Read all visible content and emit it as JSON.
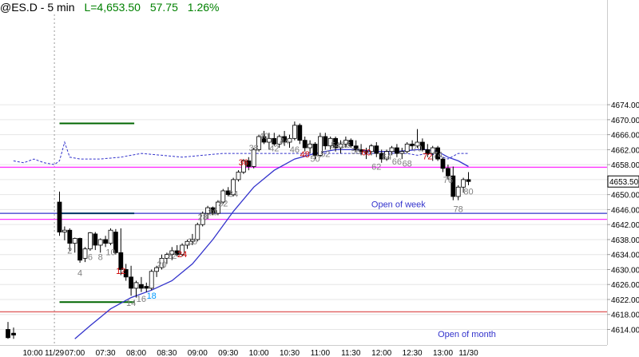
{
  "header": {
    "symbol": "@ES.D - 5 min",
    "last": "L=4,653.50",
    "change": "57.75",
    "change_pct": "1.26%"
  },
  "chart_data": {
    "type": "candlestick",
    "y_axis": {
      "ticks": [
        "4614.00",
        "4618.00",
        "4622.00",
        "4626.00",
        "4630.00",
        "4634.00",
        "4638.00",
        "4642.00",
        "4646.00",
        "4650.00",
        "4654.00",
        "4658.00",
        "4662.00",
        "4666.00",
        "4670.00",
        "4674.00"
      ],
      "range": [
        4611.5,
        4676
      ],
      "last_price_label": "4653.50",
      "last_price": 4653.5
    },
    "x_axis": {
      "ticks": [
        {
          "label": "10:00",
          "bar": -9
        },
        {
          "label": "11/29",
          "bar": -1
        },
        {
          "label": "07:00",
          "bar": 3
        },
        {
          "label": "07:30",
          "bar": 9
        },
        {
          "label": "08:00",
          "bar": 15
        },
        {
          "label": "08:30",
          "bar": 21
        },
        {
          "label": "09:00",
          "bar": 27
        },
        {
          "label": "09:30",
          "bar": 33
        },
        {
          "label": "10:00",
          "bar": 39
        },
        {
          "label": "10:30",
          "bar": 45
        },
        {
          "label": "11:00",
          "bar": 51
        },
        {
          "label": "11:30",
          "bar": 57
        },
        {
          "label": "12:00",
          "bar": 63
        },
        {
          "label": "12:30",
          "bar": 69
        },
        {
          "label": "13:00",
          "bar": 75
        },
        {
          "label": "11/30",
          "bar": 80
        }
      ]
    },
    "prior_bars": [
      [
        4614.0,
        4616.0,
        4611.5,
        4611.8
      ],
      [
        4613.0,
        4614.5,
        4611.5,
        4612.5
      ]
    ],
    "candles": [
      [
        4648.0,
        4650.8,
        4639.0,
        4640.0
      ],
      [
        4640.0,
        4641.5,
        4637.8,
        4640.5
      ],
      [
        4640.5,
        4641.0,
        4635.0,
        4637.0
      ],
      [
        4637.0,
        4638.5,
        4634.5,
        4638.3
      ],
      [
        4638.3,
        4638.5,
        4631.8,
        4632.5
      ],
      [
        4633.0,
        4636.0,
        4632.0,
        4635.5
      ],
      [
        4635.5,
        4640.0,
        4635.0,
        4639.8
      ],
      [
        4639.5,
        4640.0,
        4635.2,
        4636.5
      ],
      [
        4636.5,
        4638.3,
        4634.5,
        4638.0
      ],
      [
        4638.0,
        4639.0,
        4636.0,
        4637.0
      ],
      [
        4637.0,
        4641.0,
        4636.5,
        4640.5
      ],
      [
        4640.0,
        4640.8,
        4634.0,
        4634.5
      ],
      [
        4634.5,
        4641.0,
        4628.5,
        4630.0
      ],
      [
        4630.0,
        4631.5,
        4627.0,
        4628.0
      ],
      [
        4628.0,
        4631.0,
        4623.0,
        4625.0
      ],
      [
        4625.0,
        4627.0,
        4622.5,
        4626.5
      ],
      [
        4626.0,
        4628.0,
        4624.0,
        4625.0
      ],
      [
        4625.5,
        4626.5,
        4624.0,
        4625.0
      ],
      [
        4625.0,
        4630.0,
        4624.5,
        4629.5
      ],
      [
        4629.5,
        4631.0,
        4628.0,
        4630.5
      ],
      [
        4630.5,
        4634.0,
        4630.0,
        4633.0
      ],
      [
        4633.0,
        4634.5,
        4631.5,
        4634.0
      ],
      [
        4634.0,
        4636.0,
        4632.5,
        4635.0
      ],
      [
        4635.0,
        4636.5,
        4633.5,
        4634.0
      ],
      [
        4634.0,
        4637.0,
        4633.5,
        4636.5
      ],
      [
        4636.5,
        4638.0,
        4635.5,
        4637.5
      ],
      [
        4637.5,
        4639.5,
        4636.5,
        4638.0
      ],
      [
        4638.0,
        4642.5,
        4637.5,
        4642.0
      ],
      [
        4642.0,
        4645.5,
        4641.5,
        4645.0
      ],
      [
        4645.0,
        4647.0,
        4643.5,
        4646.5
      ],
      [
        4646.5,
        4646.8,
        4644.5,
        4645.0
      ],
      [
        4645.0,
        4648.5,
        4644.5,
        4648.0
      ],
      [
        4648.0,
        4651.5,
        4647.5,
        4651.0
      ],
      [
        4651.0,
        4652.0,
        4649.5,
        4650.0
      ],
      [
        4650.0,
        4654.5,
        4649.5,
        4654.0
      ],
      [
        4654.0,
        4656.5,
        4653.5,
        4656.0
      ],
      [
        4656.0,
        4659.5,
        4655.5,
        4659.0
      ],
      [
        4659.0,
        4660.0,
        4656.5,
        4657.5
      ],
      [
        4657.5,
        4662.5,
        4657.0,
        4662.0
      ],
      [
        4662.0,
        4666.0,
        4661.5,
        4665.5
      ],
      [
        4665.5,
        4667.0,
        4663.5,
        4664.0
      ],
      [
        4664.0,
        4666.5,
        4662.0,
        4665.0
      ],
      [
        4665.0,
        4666.5,
        4663.0,
        4663.5
      ],
      [
        4663.5,
        4666.0,
        4662.5,
        4665.5
      ],
      [
        4665.5,
        4667.0,
        4663.0,
        4664.0
      ],
      [
        4664.0,
        4666.0,
        4662.5,
        4665.0
      ],
      [
        4665.0,
        4669.5,
        4664.5,
        4668.5
      ],
      [
        4668.5,
        4669.0,
        4663.5,
        4664.5
      ],
      [
        4664.5,
        4665.5,
        4661.5,
        4662.5
      ],
      [
        4662.5,
        4664.5,
        4661.0,
        4663.5
      ],
      [
        4663.5,
        4664.0,
        4659.5,
        4660.5
      ],
      [
        4660.5,
        4666.5,
        4660.0,
        4665.5
      ],
      [
        4665.5,
        4666.5,
        4662.0,
        4663.0
      ],
      [
        4663.0,
        4665.5,
        4662.0,
        4665.0
      ],
      [
        4665.0,
        4665.5,
        4661.5,
        4662.5
      ],
      [
        4662.5,
        4664.5,
        4661.0,
        4663.5
      ],
      [
        4663.5,
        4665.5,
        4662.5,
        4664.5
      ],
      [
        4664.5,
        4665.0,
        4662.5,
        4663.0
      ],
      [
        4663.0,
        4664.5,
        4661.5,
        4662.0
      ],
      [
        4662.0,
        4663.5,
        4660.5,
        4661.5
      ],
      [
        4661.5,
        4662.5,
        4659.5,
        4661.5
      ],
      [
        4661.5,
        4663.5,
        4660.5,
        4663.0
      ],
      [
        4663.0,
        4664.0,
        4660.0,
        4661.0
      ],
      [
        4661.0,
        4662.0,
        4658.5,
        4659.5
      ],
      [
        4659.5,
        4662.0,
        4659.0,
        4661.5
      ],
      [
        4661.5,
        4663.0,
        4660.5,
        4662.5
      ],
      [
        4662.5,
        4663.5,
        4660.0,
        4661.0
      ],
      [
        4661.0,
        4662.5,
        4659.5,
        4661.5
      ],
      [
        4661.5,
        4664.0,
        4661.0,
        4663.5
      ],
      [
        4663.5,
        4664.5,
        4662.0,
        4663.0
      ],
      [
        4663.0,
        4667.5,
        4662.5,
        4664.0
      ],
      [
        4664.0,
        4665.0,
        4661.5,
        4662.0
      ],
      [
        4662.0,
        4663.5,
        4660.0,
        4661.0
      ],
      [
        4661.0,
        4663.0,
        4659.0,
        4662.5
      ],
      [
        4662.5,
        4663.0,
        4659.0,
        4659.5
      ],
      [
        4659.5,
        4660.0,
        4656.0,
        4657.0
      ],
      [
        4657.0,
        4658.0,
        4654.0,
        4655.0
      ],
      [
        4655.0,
        4657.5,
        4648.5,
        4649.5
      ],
      [
        4649.5,
        4652.5,
        4648.5,
        4652.0
      ],
      [
        4652.0,
        4654.5,
        4650.5,
        4654.0
      ],
      [
        4654.0,
        4656.0,
        4652.5,
        4653.5
      ]
    ],
    "bar_labels": [
      {
        "text": "2",
        "bar": 2,
        "price": 4634.3,
        "color": "#808080"
      },
      {
        "text": "4",
        "bar": 4,
        "price": 4628.3,
        "color": "#808080"
      },
      {
        "text": "6",
        "bar": 6,
        "price": 4632.5,
        "color": "#808080"
      },
      {
        "text": "8",
        "bar": 8,
        "price": 4632.5,
        "color": "#808080"
      },
      {
        "text": "10",
        "bar": 10,
        "price": 4633.8,
        "color": "#808080"
      },
      {
        "text": "12",
        "bar": 12,
        "price": 4628.8,
        "color": "#cc0000"
      },
      {
        "text": "14",
        "bar": 14,
        "price": 4620.3,
        "color": "#808080"
      },
      {
        "text": "16",
        "bar": 16,
        "price": 4621.4,
        "color": "#808080"
      },
      {
        "text": "18",
        "bar": 18,
        "price": 4622.2,
        "color": "#0099ff"
      },
      {
        "text": "20",
        "bar": 20,
        "price": 4630.5,
        "color": "#808080"
      },
      {
        "text": "22",
        "bar": 22,
        "price": 4632.9,
        "color": "#808080"
      },
      {
        "text": "24",
        "bar": 24,
        "price": 4633.3,
        "color": "#cc0000"
      },
      {
        "text": "26",
        "bar": 26,
        "price": 4636.7,
        "color": "#808080"
      },
      {
        "text": "28",
        "bar": 28,
        "price": 4643.2,
        "color": "#808080"
      },
      {
        "text": "30",
        "bar": 30,
        "price": 4644.5,
        "color": "#808080"
      },
      {
        "text": "32",
        "bar": 32,
        "price": 4646.8,
        "color": "#808080"
      },
      {
        "text": "34",
        "bar": 34,
        "price": 4649.4,
        "color": "#808080"
      },
      {
        "text": "36",
        "bar": 36,
        "price": 4657.8,
        "color": "#cc0000"
      },
      {
        "text": "38",
        "bar": 38,
        "price": 4661.7,
        "color": "#808080"
      },
      {
        "text": "40",
        "bar": 40,
        "price": 4664.8,
        "color": "#808080"
      },
      {
        "text": "42",
        "bar": 42,
        "price": 4661.6,
        "color": "#808080"
      },
      {
        "text": "44",
        "bar": 44,
        "price": 4663.5,
        "color": "#808080"
      },
      {
        "text": "46",
        "bar": 46,
        "price": 4661.2,
        "color": "#808080"
      },
      {
        "text": "48",
        "bar": 48,
        "price": 4659.9,
        "color": "#cc0000"
      },
      {
        "text": "50",
        "bar": 50,
        "price": 4658.8,
        "color": "#808080"
      },
      {
        "text": "52",
        "bar": 52,
        "price": 4660.1,
        "color": "#808080"
      },
      {
        "text": "54",
        "bar": 54,
        "price": 4662.4,
        "color": "#808080"
      },
      {
        "text": "56",
        "bar": 56,
        "price": 4662.5,
        "color": "#808080"
      },
      {
        "text": "58",
        "bar": 58,
        "price": 4660.8,
        "color": "#808080"
      },
      {
        "text": "60",
        "bar": 60,
        "price": 4660.5,
        "color": "#cc0000"
      },
      {
        "text": "62",
        "bar": 62,
        "price": 4656.6,
        "color": "#808080"
      },
      {
        "text": "64",
        "bar": 64,
        "price": 4659.3,
        "color": "#808080"
      },
      {
        "text": "66",
        "bar": 66,
        "price": 4658.0,
        "color": "#808080"
      },
      {
        "text": "68",
        "bar": 68,
        "price": 4657.5,
        "color": "#808080"
      },
      {
        "text": "70",
        "bar": 70,
        "price": 4661.6,
        "color": "#808080"
      },
      {
        "text": "72",
        "bar": 72,
        "price": 4659.4,
        "color": "#cc0000"
      },
      {
        "text": "74",
        "bar": 74,
        "price": 4659.8,
        "color": "#808080"
      },
      {
        "text": "76",
        "bar": 76,
        "price": 4653.1,
        "color": "#808080"
      },
      {
        "text": "78",
        "bar": 78,
        "price": 4645.3,
        "color": "#808080"
      },
      {
        "text": "80",
        "bar": 80,
        "price": 4650.0,
        "color": "#808080"
      }
    ],
    "horizontal_lines": [
      {
        "price": 4657.3,
        "color": "#ff33ff"
      },
      {
        "price": 4643.4,
        "color": "#ff33ff"
      },
      {
        "price": 4645.0,
        "color": "#3333cc"
      },
      {
        "price": 4618.7,
        "color": "#e06060"
      }
    ],
    "range_markers": [
      {
        "price": 4669.0,
        "bar_from": 0,
        "bar_to": 14,
        "color": "#006600"
      },
      {
        "price": 4645.0,
        "bar_from": 0,
        "bar_to": 14,
        "color": "#003366"
      },
      {
        "price": 4621.3,
        "bar_from": 0,
        "bar_to": 14,
        "color": "#006600"
      }
    ],
    "annotations": [
      {
        "text": "Open of week",
        "price": 4646.6,
        "bar": 61,
        "color": "#3333cc"
      },
      {
        "text": "Open of month",
        "price": 4612.0,
        "bar": 74,
        "color": "#3333cc"
      }
    ],
    "ema_line": {
      "color": "#3333cc",
      "points": [
        [
          3,
          4611.5
        ],
        [
          6,
          4615
        ],
        [
          10,
          4619.5
        ],
        [
          14,
          4622.5
        ],
        [
          18,
          4624.5
        ],
        [
          22,
          4627
        ],
        [
          26,
          4631.5
        ],
        [
          30,
          4638
        ],
        [
          34,
          4645.5
        ],
        [
          38,
          4652
        ],
        [
          42,
          4656.5
        ],
        [
          46,
          4659.5
        ],
        [
          50,
          4661
        ],
        [
          54,
          4662
        ],
        [
          58,
          4662
        ],
        [
          62,
          4661.5
        ],
        [
          66,
          4661.5
        ],
        [
          70,
          4662
        ],
        [
          72,
          4662
        ],
        [
          74,
          4661.5
        ],
        [
          76,
          4660
        ],
        [
          78,
          4659
        ],
        [
          80,
          4657.5
        ]
      ]
    },
    "dashed_line": {
      "color": "#3333cc",
      "points": [
        [
          -9,
          4659
        ],
        [
          -7,
          4658.5
        ],
        [
          -5,
          4659.5
        ],
        [
          -3,
          4658.5
        ],
        [
          -1,
          4658
        ],
        [
          0,
          4659
        ],
        [
          1,
          4664
        ],
        [
          2,
          4660
        ],
        [
          4,
          4659.5
        ],
        [
          8,
          4659.5
        ],
        [
          12,
          4660
        ],
        [
          14,
          4660.5
        ],
        [
          16,
          4661
        ],
        [
          20,
          4660.5
        ],
        [
          24,
          4660
        ],
        [
          28,
          4660.5
        ],
        [
          32,
          4661
        ],
        [
          36,
          4661
        ],
        [
          40,
          4661
        ],
        [
          44,
          4661
        ],
        [
          48,
          4661
        ],
        [
          52,
          4661
        ],
        [
          56,
          4661
        ],
        [
          60,
          4661
        ],
        [
          64,
          4661
        ],
        [
          68,
          4661
        ],
        [
          70,
          4660.5
        ],
        [
          72,
          4661
        ],
        [
          74,
          4660.5
        ],
        [
          76,
          4659.5
        ],
        [
          78,
          4661
        ],
        [
          80,
          4661
        ]
      ]
    },
    "session_divider_bar": -1
  }
}
